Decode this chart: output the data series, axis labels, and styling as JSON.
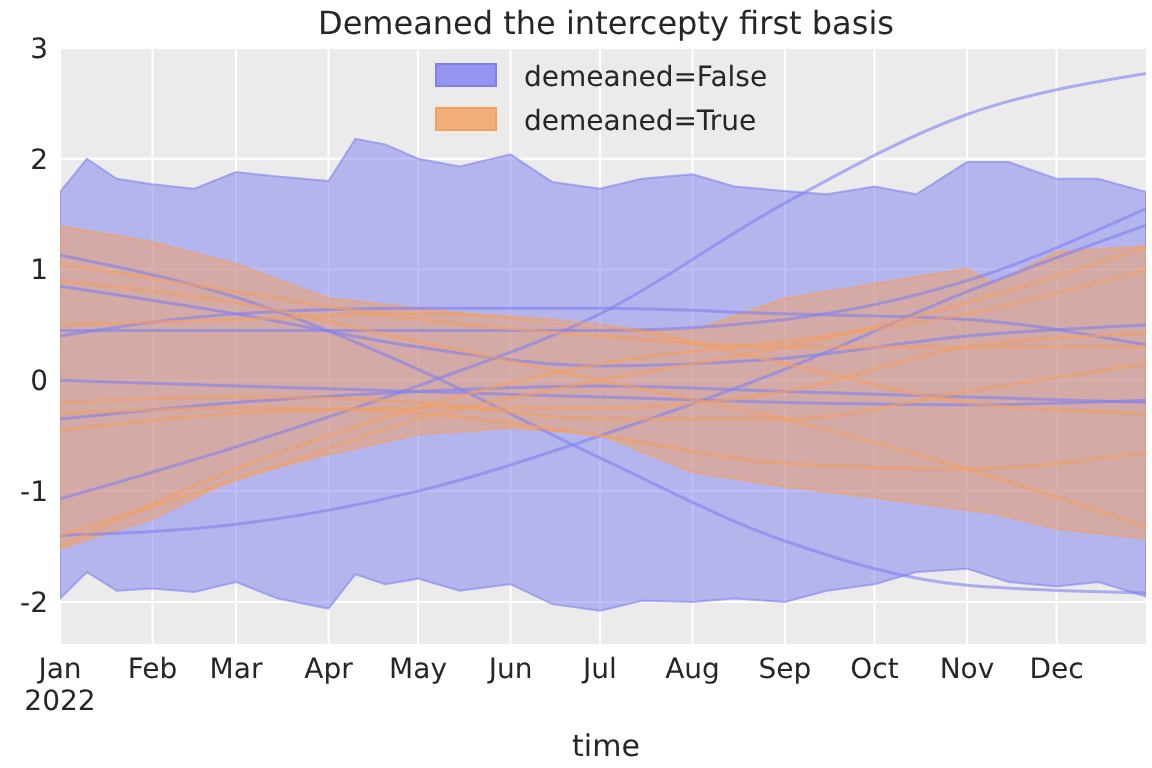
{
  "chart_data": {
    "type": "line",
    "title": "Demeaned the intercepty first basis",
    "xlabel": "time",
    "xlim": [
      "2022-01-01",
      "2022-12-31"
    ],
    "xticks": [
      {
        "value": "2022-01-01",
        "label": "Jan\n2022"
      },
      {
        "value": "2022-02-01",
        "label": "Feb"
      },
      {
        "value": "2022-03-01",
        "label": "Mar"
      },
      {
        "value": "2022-04-01",
        "label": "Apr"
      },
      {
        "value": "2022-05-01",
        "label": "May"
      },
      {
        "value": "2022-06-01",
        "label": "Jun"
      },
      {
        "value": "2022-07-01",
        "label": "Jul"
      },
      {
        "value": "2022-08-01",
        "label": "Aug"
      },
      {
        "value": "2022-09-01",
        "label": "Sep"
      },
      {
        "value": "2022-10-01",
        "label": "Oct"
      },
      {
        "value": "2022-11-01",
        "label": "Nov"
      },
      {
        "value": "2022-12-01",
        "label": "Dec"
      }
    ],
    "ylim": [
      -2.38,
      3
    ],
    "yticks": [
      -2,
      -1,
      0,
      1,
      2,
      3
    ],
    "grid": true,
    "legend": "top",
    "series": [
      {
        "name": "demeaned=False",
        "color": "#8080f0",
        "values": [
          null,
          null,
          null,
          null,
          null,
          null,
          null,
          null,
          null,
          null,
          null,
          null,
          null,
          null,
          null,
          null,
          null,
          null,
          null,
          null,
          null,
          null,
          null,
          null,
          null,
          null,
          null
        ],
        "x": [
          "2022-01-01",
          "2022-01-10",
          "2022-01-20",
          "2022-02-01",
          "2022-02-15",
          "2022-03-01",
          "2022-03-15",
          "2022-04-01",
          "2022-04-10",
          "2022-04-20",
          "2022-05-01",
          "2022-05-15",
          "2022-06-01",
          "2022-06-15",
          "2022-07-01",
          "2022-07-15",
          "2022-08-01",
          "2022-08-15",
          "2022-09-01",
          "2022-09-15",
          "2022-10-01",
          "2022-10-15",
          "2022-11-01",
          "2022-11-15",
          "2022-12-01",
          "2022-12-15",
          "2022-12-31"
        ],
        "lower": [
          -1.97,
          -1.73,
          -1.9,
          -1.88,
          -1.91,
          -1.82,
          -1.97,
          -2.06,
          -1.75,
          -1.84,
          -1.79,
          -1.9,
          -1.84,
          -2.02,
          -2.08,
          -1.99,
          -2.0,
          -1.97,
          -2.0,
          -1.9,
          -1.84,
          -1.73,
          -1.7,
          -1.82,
          -1.86,
          -1.82,
          -1.95
        ],
        "upper": [
          1.7,
          2.0,
          1.82,
          1.77,
          1.73,
          1.88,
          1.84,
          1.8,
          2.18,
          2.13,
          2.0,
          1.93,
          2.04,
          1.79,
          1.73,
          1.82,
          1.86,
          1.75,
          1.71,
          1.68,
          1.75,
          1.68,
          1.97,
          1.97,
          1.82,
          1.82,
          1.7
        ]
      },
      {
        "name": "demeaned=True",
        "color": "#f4a060",
        "values": [
          null,
          null,
          null,
          null,
          null,
          null,
          null,
          null,
          null,
          null,
          null,
          null,
          null,
          null
        ],
        "x": [
          "2022-01-01",
          "2022-02-01",
          "2022-03-01",
          "2022-04-01",
          "2022-05-01",
          "2022-06-01",
          "2022-07-01",
          "2022-08-01",
          "2022-09-01",
          "2022-10-01",
          "2022-11-01",
          "2022-11-10",
          "2022-12-01",
          "2022-12-31"
        ],
        "lower": [
          -1.52,
          -1.25,
          -0.88,
          -0.67,
          -0.49,
          -0.43,
          -0.49,
          -0.83,
          -0.96,
          -1.06,
          -1.17,
          -1.2,
          -1.34,
          -1.43
        ],
        "upper": [
          1.39,
          1.25,
          1.05,
          0.74,
          0.65,
          0.56,
          0.47,
          0.45,
          0.74,
          0.87,
          1.01,
          0.87,
          1.16,
          1.21
        ]
      },
      {
        "color": "#8080f0",
        "values": [
          -1.07,
          -0.6,
          -0.05,
          0.6,
          1.6,
          2.4,
          2.77
        ]
      },
      {
        "color": "#8080f0",
        "values": [
          -1.4,
          -1.3,
          -1.0,
          -0.5,
          0.1,
          0.8,
          1.4
        ]
      },
      {
        "color": "#8080f0",
        "values": [
          1.13,
          0.75,
          0.1,
          -0.7,
          -1.45,
          -1.85,
          -1.92
        ]
      },
      {
        "color": "#8080f0",
        "values": [
          0.45,
          0.45,
          0.45,
          0.45,
          0.55,
          0.9,
          1.55
        ]
      },
      {
        "color": "#8080f0",
        "values": [
          0.85,
          0.6,
          0.3,
          0.13,
          0.2,
          0.4,
          0.5
        ]
      },
      {
        "color": "#8080f0",
        "values": [
          0.0,
          -0.05,
          -0.1,
          -0.15,
          -0.2,
          -0.22,
          -0.18
        ]
      },
      {
        "color": "#8080f0",
        "values": [
          -0.35,
          -0.2,
          -0.1,
          -0.05,
          -0.1,
          -0.15,
          -0.2
        ]
      },
      {
        "color": "#8080f0",
        "values": [
          0.4,
          0.6,
          0.65,
          0.65,
          0.6,
          0.55,
          0.32
        ]
      },
      {
        "color": "#f4a060",
        "values": [
          1.05,
          0.8,
          0.55,
          0.4,
          0.3,
          0.3,
          0.3
        ]
      },
      {
        "color": "#f4a060",
        "values": [
          -1.5,
          -0.8,
          -0.25,
          0.15,
          0.35,
          0.6,
          1.0
        ]
      },
      {
        "color": "#f4a060",
        "values": [
          -1.4,
          -0.9,
          -0.35,
          0.0,
          0.3,
          0.7,
          1.2
        ]
      },
      {
        "color": "#f4a060",
        "values": [
          0.9,
          0.7,
          0.35,
          0.0,
          -0.35,
          -0.8,
          -1.32
        ]
      },
      {
        "color": "#f4a060",
        "values": [
          -0.3,
          -0.25,
          -0.3,
          -0.5,
          -0.75,
          -0.8,
          -0.65
        ]
      },
      {
        "color": "#f4a060",
        "values": [
          0.5,
          0.55,
          0.6,
          0.5,
          0.15,
          -0.2,
          -0.3
        ]
      },
      {
        "color": "#f4a060",
        "values": [
          -0.2,
          -0.15,
          -0.2,
          -0.35,
          -0.35,
          -0.1,
          0.15
        ]
      },
      {
        "color": "#f4a060",
        "values": [
          -0.45,
          -0.3,
          -0.25,
          -0.25,
          -0.1,
          0.3,
          0.42
        ]
      }
    ],
    "x": [
      "2022-01-01",
      "2022-03-01",
      "2022-05-01",
      "2022-07-01",
      "2022-09-01",
      "2022-11-01",
      "2022-12-31"
    ]
  }
}
